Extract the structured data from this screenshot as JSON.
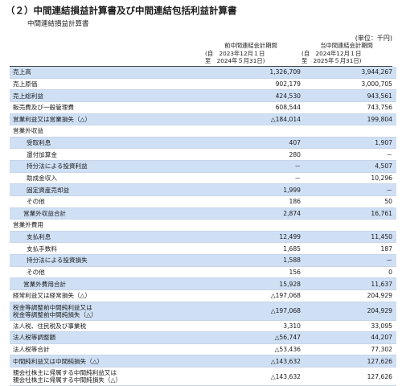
{
  "section_title": "（２）中間連結損益計算書及び中間連結包括利益計算書",
  "sub_title": "中間連結損益計算書",
  "unit": "(単位：千円)",
  "columns": {
    "prev": {
      "line1": "前中間連結会計期間",
      "line2": "(自　2023年12月１日",
      "line3": "至　2024年５月31日)"
    },
    "curr": {
      "line1": "当中間連結会計期間",
      "line2": "(自　2024年12月１日",
      "line3": "至　2025年５月31日)"
    }
  },
  "rows": [
    {
      "label": "売上高",
      "prev": "1,326,709",
      "curr": "3,944,267"
    },
    {
      "label": "売上原価",
      "prev": "902,179",
      "curr": "3,000,705"
    },
    {
      "label": "売上総利益",
      "prev": "424,530",
      "curr": "943,561"
    },
    {
      "label": "販売費及び一般管理費",
      "prev": "608,544",
      "curr": "743,756"
    },
    {
      "label": "営業利益又は営業損失（△）",
      "prev": "△184,014",
      "curr": "199,804"
    },
    {
      "label": "営業外収益",
      "prev": "",
      "curr": ""
    },
    {
      "label": "受取利息",
      "prev": "407",
      "curr": "1,907"
    },
    {
      "label": "還付加算金",
      "prev": "280",
      "curr": "－"
    },
    {
      "label": "持分法による投資利益",
      "prev": "－",
      "curr": "4,507"
    },
    {
      "label": "助成金収入",
      "prev": "－",
      "curr": "10,296"
    },
    {
      "label": "固定資産売却益",
      "prev": "1,999",
      "curr": "－"
    },
    {
      "label": "その他",
      "prev": "186",
      "curr": "50"
    },
    {
      "label": "営業外収益合計",
      "prev": "2,874",
      "curr": "16,761"
    },
    {
      "label": "営業外費用",
      "prev": "",
      "curr": ""
    },
    {
      "label": "支払利息",
      "prev": "12,499",
      "curr": "11,450"
    },
    {
      "label": "支払手数料",
      "prev": "1,685",
      "curr": "187"
    },
    {
      "label": "持分法による投資損失",
      "prev": "1,588",
      "curr": "－"
    },
    {
      "label": "その他",
      "prev": "156",
      "curr": "0"
    },
    {
      "label": "営業外費用合計",
      "prev": "15,928",
      "curr": "11,637"
    },
    {
      "label": "経常利益又は経常損失（△）",
      "prev": "△197,068",
      "curr": "204,929"
    },
    {
      "label": "税金等調整前中間純利益又は",
      "label2": "税金等調整前中間純損失（△）",
      "prev": "△197,068",
      "curr": "204,929"
    },
    {
      "label": "法人税、住民税及び事業税",
      "prev": "3,310",
      "curr": "33,095"
    },
    {
      "label": "法人税等調整額",
      "prev": "△56,747",
      "curr": "44,207"
    },
    {
      "label": "法人税等合計",
      "prev": "△53,436",
      "curr": "77,302"
    },
    {
      "label": "中間純利益又は中間純損失（△）",
      "prev": "△143,632",
      "curr": "127,626"
    },
    {
      "label": "親会社株主に帰属する中間純利益又は",
      "label2": "親会社株主に帰属する中間純損失（△）",
      "prev": "△143,632",
      "curr": "127,626"
    }
  ],
  "colors": {
    "row_highlight": "#cfe0f5",
    "row_rule": "#c8d4e8"
  }
}
